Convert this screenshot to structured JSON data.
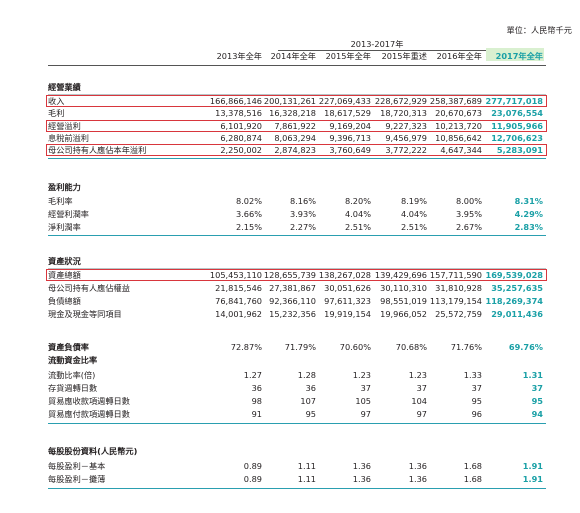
{
  "unit": "單位：人民幣千元",
  "period_span": "2013-2017年",
  "columns": [
    "2013年全年",
    "2014年全年",
    "2015年全年",
    "2015年重述",
    "2016年全年",
    "2017年全年"
  ],
  "sections": [
    {
      "title": "經營業績",
      "rows": [
        {
          "label": "收入",
          "values": [
            "166,866,146",
            "200,131,261",
            "227,069,433",
            "228,672,929",
            "258,387,689",
            "277,717,018"
          ]
        },
        {
          "label": "毛利",
          "values": [
            "13,378,516",
            "16,328,218",
            "18,617,529",
            "18,720,313",
            "20,670,673",
            "23,076,554"
          ]
        },
        {
          "label": "經營溢利",
          "values": [
            "6,101,920",
            "7,861,922",
            "9,169,204",
            "9,227,323",
            "10,213,720",
            "11,905,966"
          ]
        },
        {
          "label": "息稅前溢利",
          "values": [
            "6,280,874",
            "8,063,294",
            "9,396,713",
            "9,456,979",
            "10,856,642",
            "12,706,623"
          ]
        },
        {
          "label": "母公司持有人應佔本年溢利",
          "values": [
            "2,250,002",
            "2,874,823",
            "3,760,649",
            "3,772,222",
            "4,647,344",
            "5,283,091"
          ]
        }
      ]
    },
    {
      "title": "盈利能力",
      "rows": [
        {
          "label": "毛利率",
          "values": [
            "8.02%",
            "8.16%",
            "8.20%",
            "8.19%",
            "8.00%",
            "8.31%"
          ]
        },
        {
          "label": "經營利潤率",
          "values": [
            "3.66%",
            "3.93%",
            "4.04%",
            "4.04%",
            "3.95%",
            "4.29%"
          ]
        },
        {
          "label": "淨利潤率",
          "values": [
            "2.15%",
            "2.27%",
            "2.51%",
            "2.51%",
            "2.67%",
            "2.83%"
          ]
        }
      ]
    },
    {
      "title": "資產狀況",
      "rows": [
        {
          "label": "資產總額",
          "values": [
            "105,453,110",
            "128,655,739",
            "138,267,028",
            "139,429,696",
            "157,711,590",
            "169,539,028"
          ]
        },
        {
          "label": "母公司持有人應佔權益",
          "values": [
            "21,815,546",
            "27,381,867",
            "30,051,626",
            "30,110,310",
            "31,810,928",
            "35,257,635"
          ]
        },
        {
          "label": "負債總額",
          "values": [
            "76,841,760",
            "92,366,110",
            "97,611,323",
            "98,551,019",
            "113,179,154",
            "118,269,374"
          ]
        },
        {
          "label": "現金及現金等同項目",
          "values": [
            "14,001,962",
            "15,232,356",
            "19,919,154",
            "19,966,052",
            "25,572,759",
            "29,011,436"
          ]
        }
      ]
    },
    {
      "title": "資產負債率",
      "title_values": [
        "72.87%",
        "71.79%",
        "70.60%",
        "70.68%",
        "71.76%",
        "69.76%"
      ],
      "subtitle": "流動資金比率",
      "rows": [
        {
          "label": "流動比率(倍)",
          "values": [
            "1.27",
            "1.28",
            "1.23",
            "1.23",
            "1.33",
            "1.31"
          ]
        },
        {
          "label": "存貨週轉日數",
          "values": [
            "36",
            "36",
            "37",
            "37",
            "37",
            "37"
          ]
        },
        {
          "label": "貿易應收款項週轉日數",
          "values": [
            "98",
            "107",
            "105",
            "104",
            "95",
            "95"
          ]
        },
        {
          "label": "貿易應付款項週轉日數",
          "values": [
            "91",
            "95",
            "97",
            "97",
            "96",
            "94"
          ]
        }
      ]
    },
    {
      "title": "每股股份資料(人民幣元)",
      "rows": [
        {
          "label": "每股盈利－基本",
          "values": [
            "0.89",
            "1.11",
            "1.36",
            "1.36",
            "1.68",
            "1.91"
          ]
        },
        {
          "label": "每股盈利－攤薄",
          "values": [
            "0.89",
            "1.11",
            "1.36",
            "1.36",
            "1.68",
            "1.91"
          ]
        }
      ]
    }
  ],
  "colors": {
    "highlight_text": "#1aa0a6",
    "highlight_header_bg": "#d9f0d0",
    "box_red": "#d8363d",
    "rule_teal": "#2a9fb0"
  }
}
